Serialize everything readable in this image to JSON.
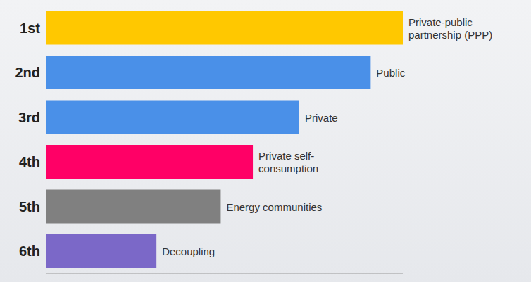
{
  "chart_data": {
    "type": "bar",
    "orientation": "horizontal",
    "categories": [
      "1st",
      "2nd",
      "3rd",
      "4th",
      "5th",
      "6th"
    ],
    "values": [
      100,
      91,
      71,
      58,
      49,
      31
    ],
    "bar_labels": [
      "Private-public partnership (PPP)",
      "Public",
      "Private",
      "Private self-consumption",
      "Energy communities",
      "Decoupling"
    ],
    "colors": [
      "#ffc800",
      "#4a90e8",
      "#4a90e8",
      "#ff0066",
      "#808080",
      "#7b68c8"
    ],
    "xlim": [
      0,
      100
    ],
    "grid": false,
    "tick_labels": "y"
  }
}
